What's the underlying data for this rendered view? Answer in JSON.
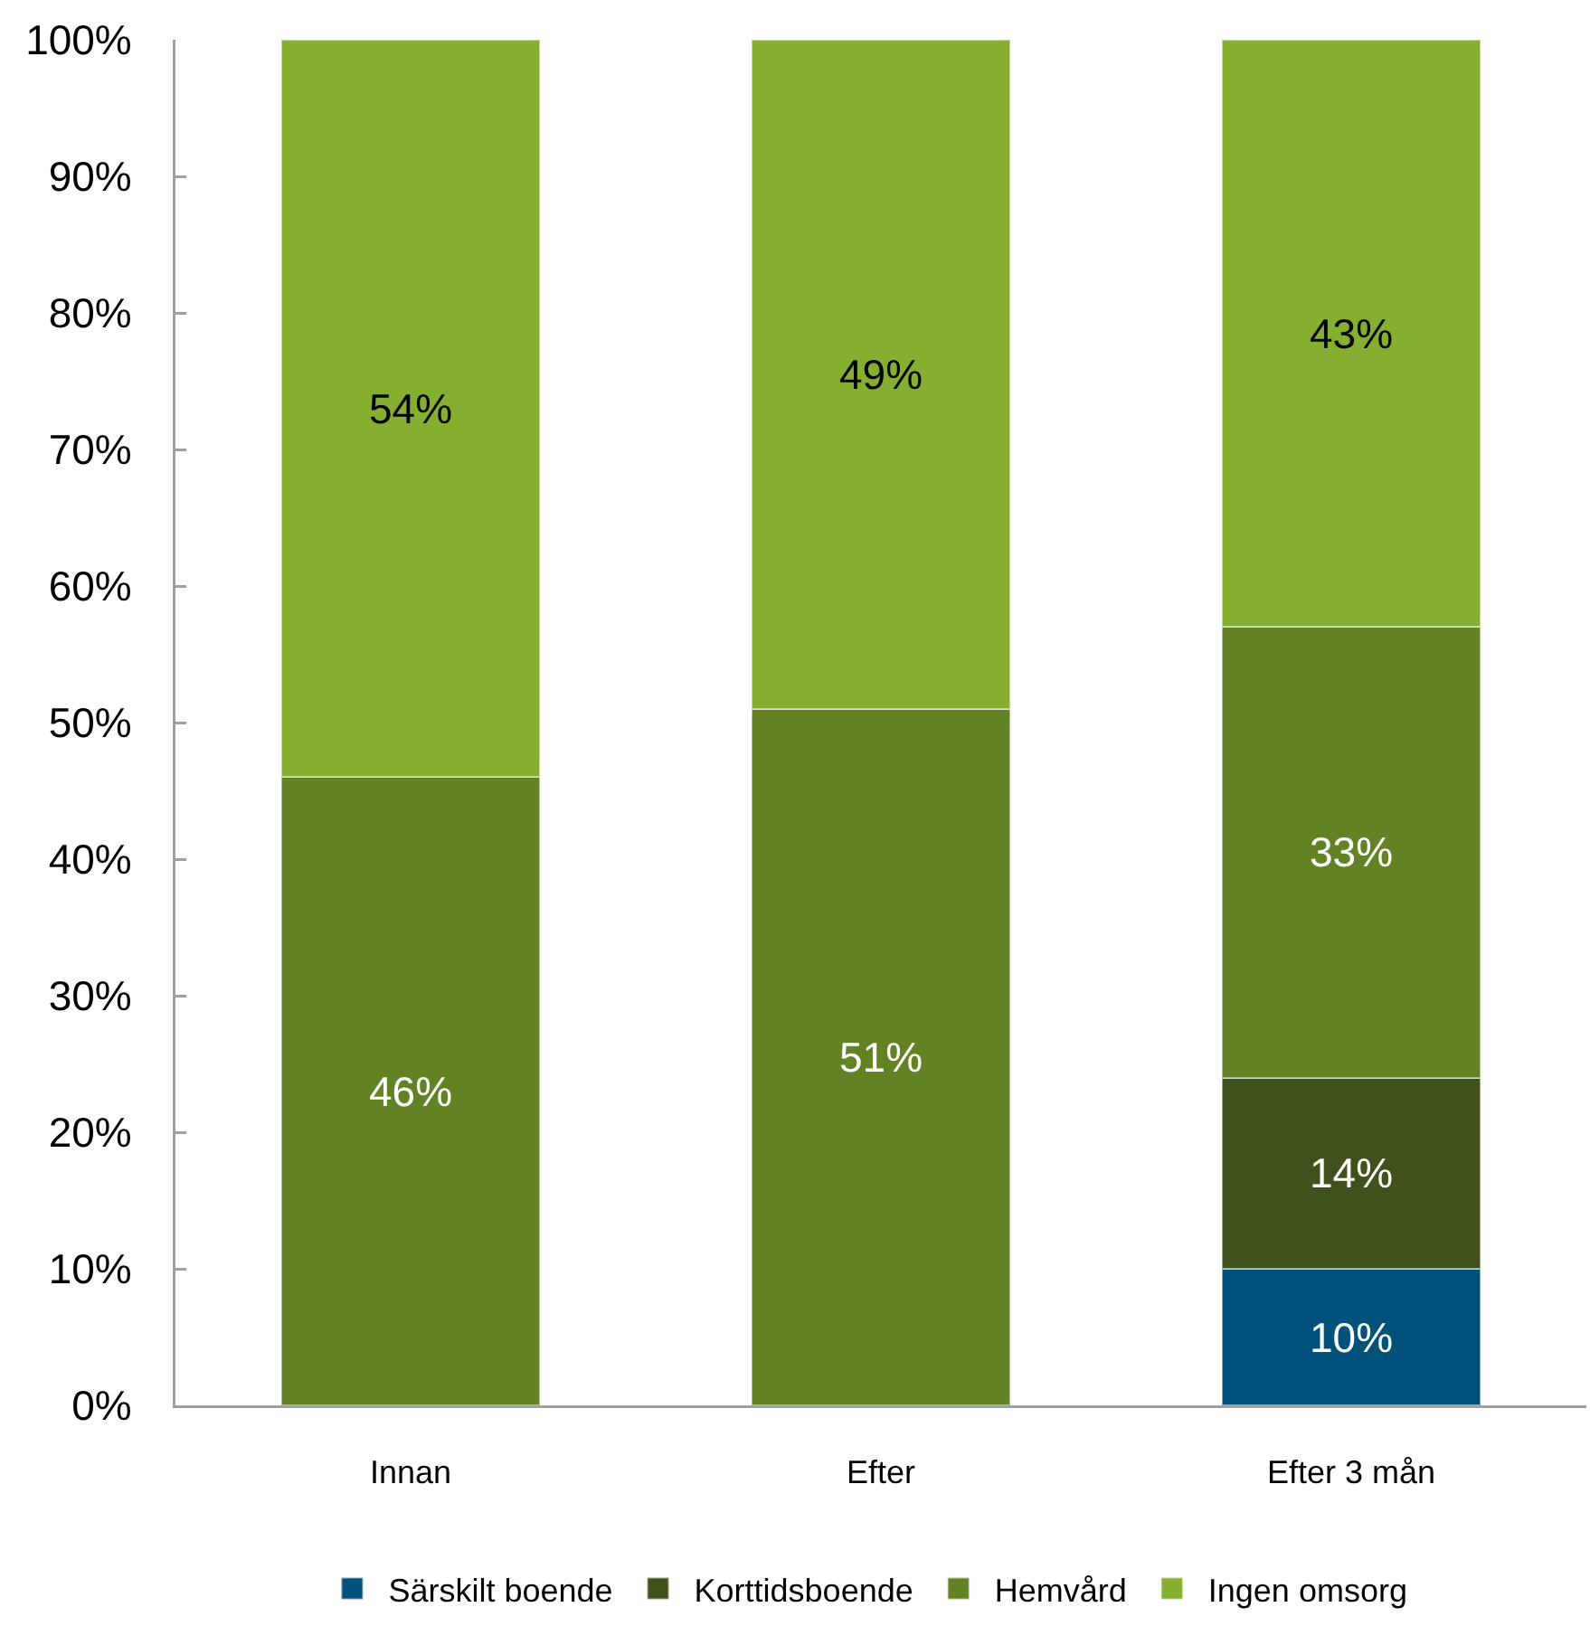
{
  "chart_data": {
    "type": "bar",
    "stacked": true,
    "categories": [
      "Innan",
      "Efter",
      "Efter 3 mån"
    ],
    "series": [
      {
        "name": "Särskilt boende",
        "color": "#00527a",
        "values": [
          null,
          null,
          10
        ],
        "value_labels": [
          null,
          null,
          "10%"
        ]
      },
      {
        "name": "Korttidsboende",
        "color": "#41511b",
        "values": [
          null,
          null,
          14
        ],
        "value_labels": [
          null,
          null,
          "14%"
        ]
      },
      {
        "name": "Hemvård",
        "color": "#628224",
        "values": [
          46,
          51,
          33
        ],
        "value_labels": [
          "46%",
          "51%",
          "33%"
        ]
      },
      {
        "name": "Ingen omsorg",
        "color": "#85b02f",
        "values": [
          54,
          49,
          43
        ],
        "value_labels": [
          "54%",
          "49%",
          "43%"
        ]
      }
    ],
    "ylim": [
      0,
      100
    ],
    "yticks": [
      {
        "value": 0,
        "label": "0%"
      },
      {
        "value": 10,
        "label": "10%"
      },
      {
        "value": 20,
        "label": "20%"
      },
      {
        "value": 30,
        "label": "30%"
      },
      {
        "value": 40,
        "label": "40%"
      },
      {
        "value": 50,
        "label": "50%"
      },
      {
        "value": 60,
        "label": "60%"
      },
      {
        "value": 70,
        "label": "70%"
      },
      {
        "value": 80,
        "label": "80%"
      },
      {
        "value": 90,
        "label": "90%"
      },
      {
        "value": 100,
        "label": "100%"
      }
    ],
    "grid": false,
    "legend": "bottom"
  }
}
